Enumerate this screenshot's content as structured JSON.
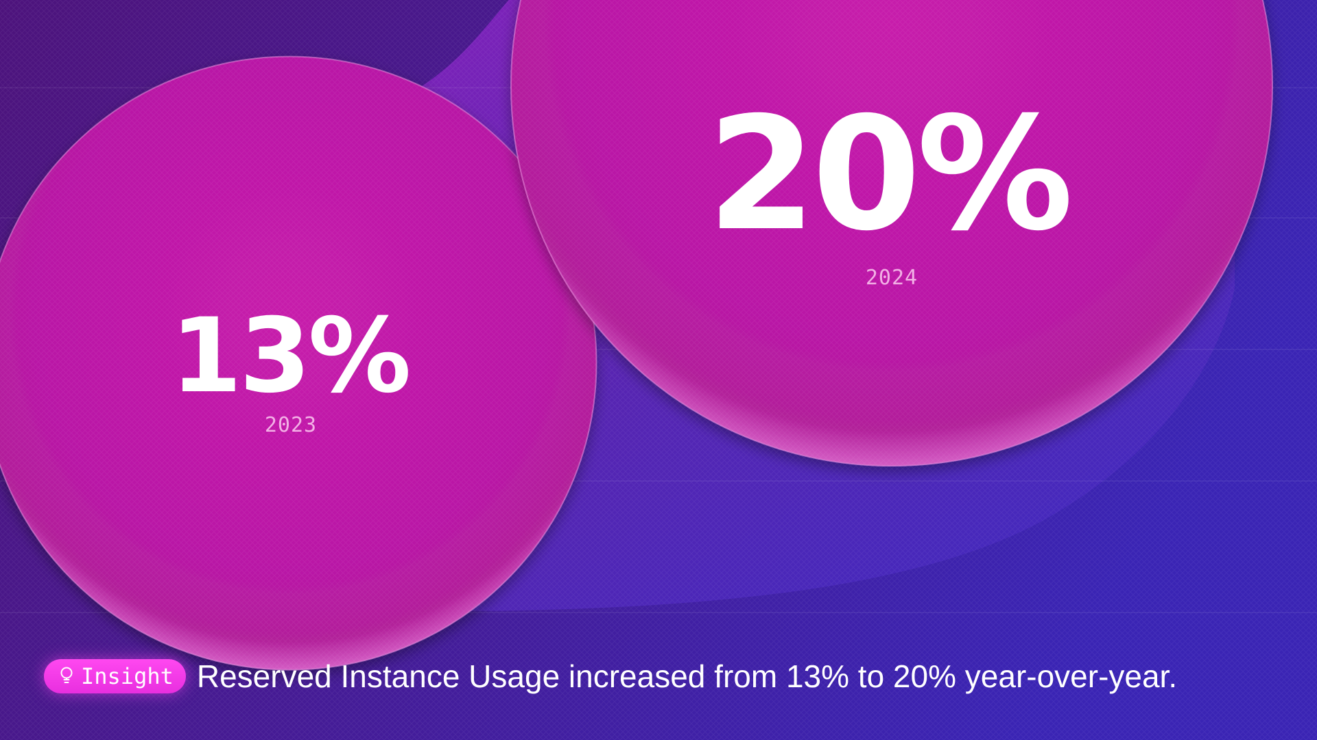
{
  "chart_data": {
    "type": "bubble",
    "categories": [
      "2023",
      "2024"
    ],
    "values": [
      13,
      20
    ],
    "value_labels": [
      "13%",
      "20%"
    ],
    "unit": "%"
  },
  "insight": {
    "badge_label": "Insight",
    "badge_icon": "lightbulb-icon",
    "text": "Reserved Instance Usage increased from 13% to 20% year-over-year."
  },
  "colors": {
    "background_left": "#4a1580",
    "background_right": "#3a22b0",
    "bubble": "#c01aa8",
    "badge": "#f23ce6",
    "text": "#ffffff"
  }
}
